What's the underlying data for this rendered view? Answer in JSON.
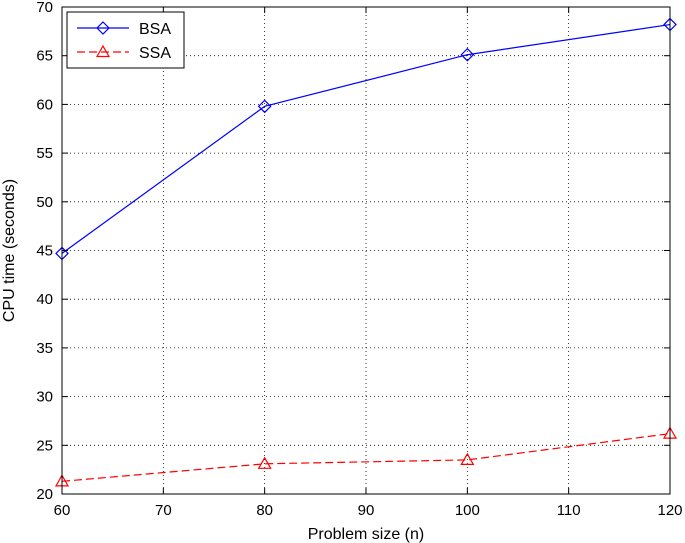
{
  "chart_data": {
    "type": "line",
    "title": "",
    "xlabel": "Problem size (n)",
    "ylabel": "CPU time (seconds)",
    "xlim": [
      60,
      120
    ],
    "ylim": [
      20,
      70
    ],
    "xticks": [
      60,
      70,
      80,
      90,
      100,
      110,
      120
    ],
    "yticks": [
      20,
      25,
      30,
      35,
      40,
      45,
      50,
      55,
      60,
      65,
      70
    ],
    "grid": true,
    "legend_position": "top-left",
    "x": [
      60,
      80,
      100,
      120
    ],
    "series": [
      {
        "name": "BSA",
        "values": [
          44.7,
          59.8,
          65.1,
          68.2
        ],
        "color": "#0000ff",
        "marker": "diamond",
        "line_style": "solid"
      },
      {
        "name": "SSA",
        "values": [
          21.3,
          23.1,
          23.5,
          26.2
        ],
        "color": "#ff0000",
        "marker": "triangle",
        "line_style": "dashed"
      }
    ]
  }
}
